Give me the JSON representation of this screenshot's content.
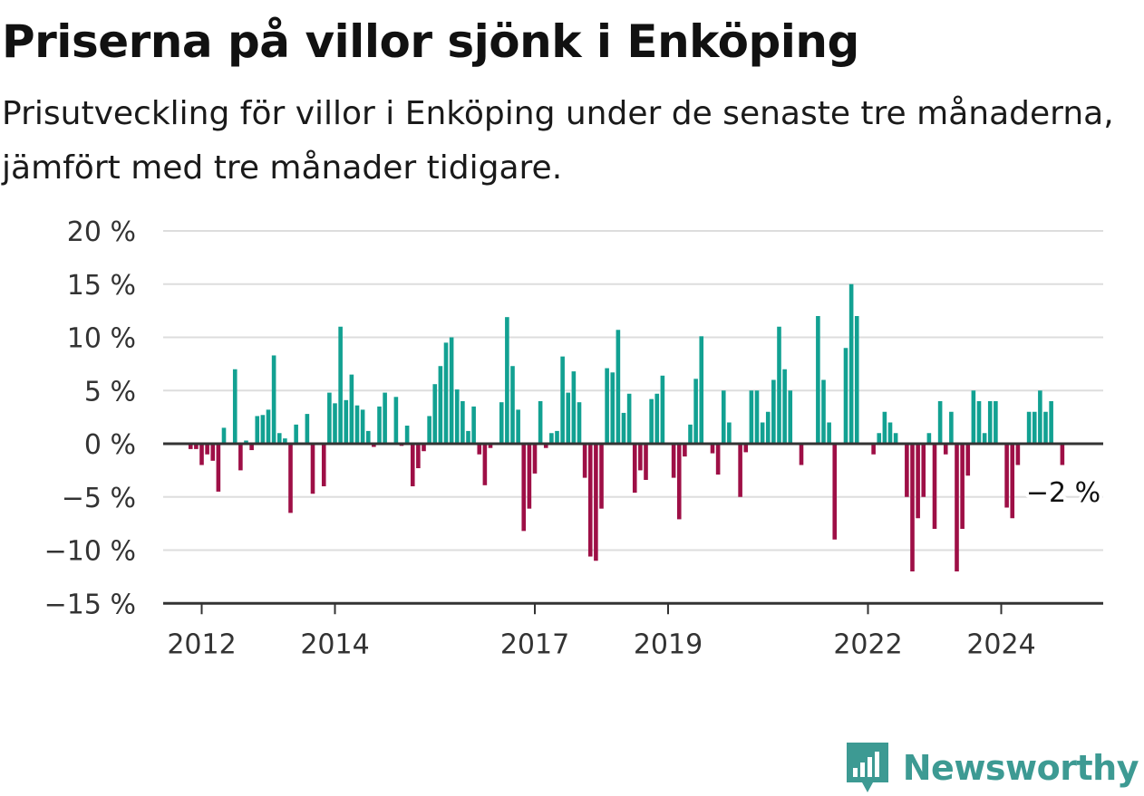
{
  "title": "Priserna på villor sjönk i Enköping",
  "subtitle": "Prisutveckling för villor i Enköping under de senaste tre månaderna, jämfört med tre månader tidigare.",
  "brand": {
    "name": "Newsworthy",
    "icon": "newsworthy-logo-icon"
  },
  "colors": {
    "positive": "#12a192",
    "negative": "#9e0f46",
    "grid": "#dddddd",
    "axis": "#333333"
  },
  "chart_data": {
    "type": "bar",
    "ylim": [
      -15,
      20
    ],
    "y_ticks": [
      20,
      15,
      10,
      5,
      0,
      -5,
      -10,
      -15
    ],
    "y_tick_labels": [
      "20 %",
      "15 %",
      "10 %",
      "5 %",
      "0 %",
      "−5 %",
      "−10 %",
      "−15 %"
    ],
    "x_ticks": [
      {
        "value": 2012,
        "label": "2012"
      },
      {
        "value": 2014,
        "label": "2014"
      },
      {
        "value": 2017,
        "label": "2017"
      },
      {
        "value": 2019,
        "label": "2019"
      },
      {
        "value": 2022,
        "label": "2022"
      },
      {
        "value": 2024,
        "label": "2024"
      }
    ],
    "start": "2011-11",
    "values": [
      -0.5,
      -0.5,
      -2,
      -1,
      -1.6,
      -4.5,
      1.5,
      0,
      7,
      -2.5,
      0.3,
      -0.6,
      2.6,
      2.7,
      3.2,
      8.3,
      1,
      0.5,
      -6.5,
      1.8,
      0,
      2.8,
      -4.7,
      0,
      -4,
      4.8,
      3.8,
      11,
      4.1,
      6.5,
      3.6,
      3.2,
      1.2,
      -0.3,
      3.5,
      4.8,
      0,
      4.4,
      -0.2,
      1.7,
      -4,
      -2.3,
      -0.7,
      2.6,
      5.6,
      7.3,
      9.5,
      10,
      5.1,
      4,
      1.2,
      3.5,
      -1,
      -3.9,
      -0.4,
      0,
      3.9,
      11.9,
      7.3,
      3.2,
      -8.2,
      -6.1,
      -2.8,
      4,
      -0.4,
      1,
      1.2,
      8.2,
      4.8,
      6.8,
      3.9,
      -3.2,
      -10.6,
      -11,
      -6.1,
      7.1,
      6.7,
      10.7,
      2.9,
      4.7,
      -4.6,
      -2.5,
      -3.4,
      4.2,
      4.7,
      6.4,
      0,
      -3.2,
      -7.1,
      -1.2,
      1.8,
      6.1,
      10.1,
      0,
      -0.9,
      -2.9,
      5,
      2,
      0,
      -5,
      -0.8,
      5,
      5,
      2,
      3,
      6,
      11,
      7,
      5,
      0,
      -2,
      0,
      0,
      12,
      6,
      2,
      -9,
      0,
      9,
      15,
      12,
      0,
      0,
      -1,
      1,
      3,
      2,
      1,
      0,
      -5,
      -12,
      -7,
      -5,
      1,
      -8,
      4,
      -1,
      3,
      -12,
      -8,
      -3,
      5,
      4,
      1,
      4,
      4,
      0,
      -6,
      -7,
      -2,
      0,
      3,
      3,
      5,
      3,
      4,
      0,
      -2
    ],
    "last_label": "−2 %"
  }
}
